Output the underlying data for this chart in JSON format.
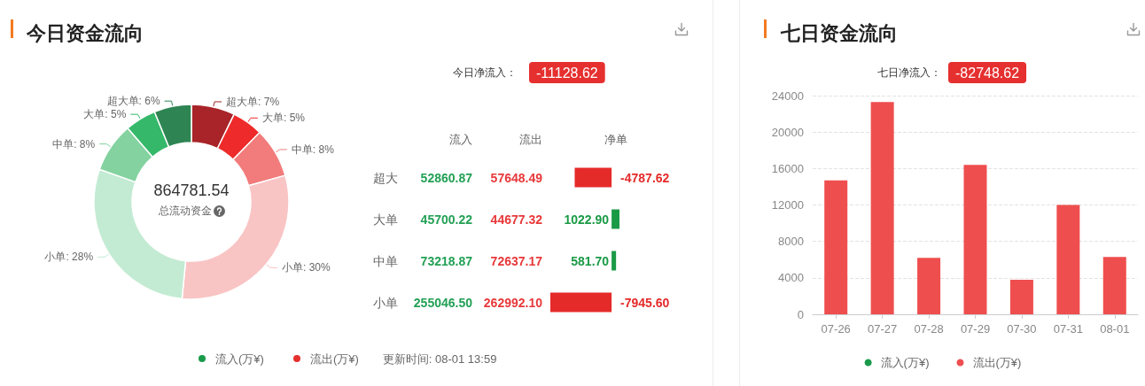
{
  "chart_data": [
    {
      "type": "donut",
      "title": "今日资金流向",
      "categories": [
        "超大单",
        "大单",
        "中单",
        "小单",
        "小单",
        "中单",
        "大单",
        "超大单"
      ],
      "values": [
        7,
        5,
        8,
        30,
        28,
        8,
        5,
        6
      ],
      "colors": [
        "#a82428",
        "#ee2a2a",
        "#f27b7b",
        "#f9c4c4",
        "#c3ebd3",
        "#84d2a0",
        "#35b86a",
        "#2e8553"
      ],
      "value_labels": [
        "7%",
        "5%",
        "8%",
        "30%",
        "28%",
        "8%",
        "5%",
        "6%"
      ],
      "annotations": [
        "864781.54",
        "总流动资金",
        "流入(万¥)",
        "流出(万¥)",
        "更新时间: 08-01 13:59"
      ]
    },
    {
      "type": "bar",
      "orientation": "horizontal",
      "categories": [
        "超大",
        "大单",
        "中单",
        "小单"
      ],
      "series": [
        {
          "name": "净单",
          "colors": [
            "#e52a2a",
            "#1a9a46",
            "#1a9a46",
            "#e52a2a"
          ],
          "values": [
            -4787.62,
            1022.9,
            581.7,
            -7945.6
          ],
          "value_labels": [
            "-4787.62",
            "1022.90",
            "581.70",
            "-7945.60"
          ]
        }
      ],
      "annotations": [
        "今日净流入：",
        "-11128.62",
        "流入",
        "流出",
        "52860.87",
        "57648.49",
        "45700.22",
        "44677.32",
        "73218.87",
        "72637.17",
        "255046.50",
        "262992.10"
      ]
    },
    {
      "type": "bar",
      "title": "七日资金流向",
      "categories": [
        "07-26",
        "07-27",
        "07-28",
        "07-29",
        "07-30",
        "07-31",
        "08-01"
      ],
      "series": [
        {
          "name": "流入(万¥)",
          "color": "#1a9a4b",
          "values": [
            null,
            null,
            null,
            null,
            null,
            null,
            null
          ]
        },
        {
          "name": "流出(万¥)",
          "color": "#ef4e4e",
          "values": [
            14700,
            23300,
            6200,
            16400,
            3800,
            12000,
            6300
          ]
        }
      ],
      "stacked": true,
      "ylim": [
        0,
        24000
      ],
      "yticks": [
        0,
        4000,
        8000,
        12000,
        16000,
        20000,
        24000
      ],
      "grid": "y",
      "legend": "bottom",
      "annotations": [
        "七日净流入：",
        "-82748.62"
      ]
    }
  ]
}
